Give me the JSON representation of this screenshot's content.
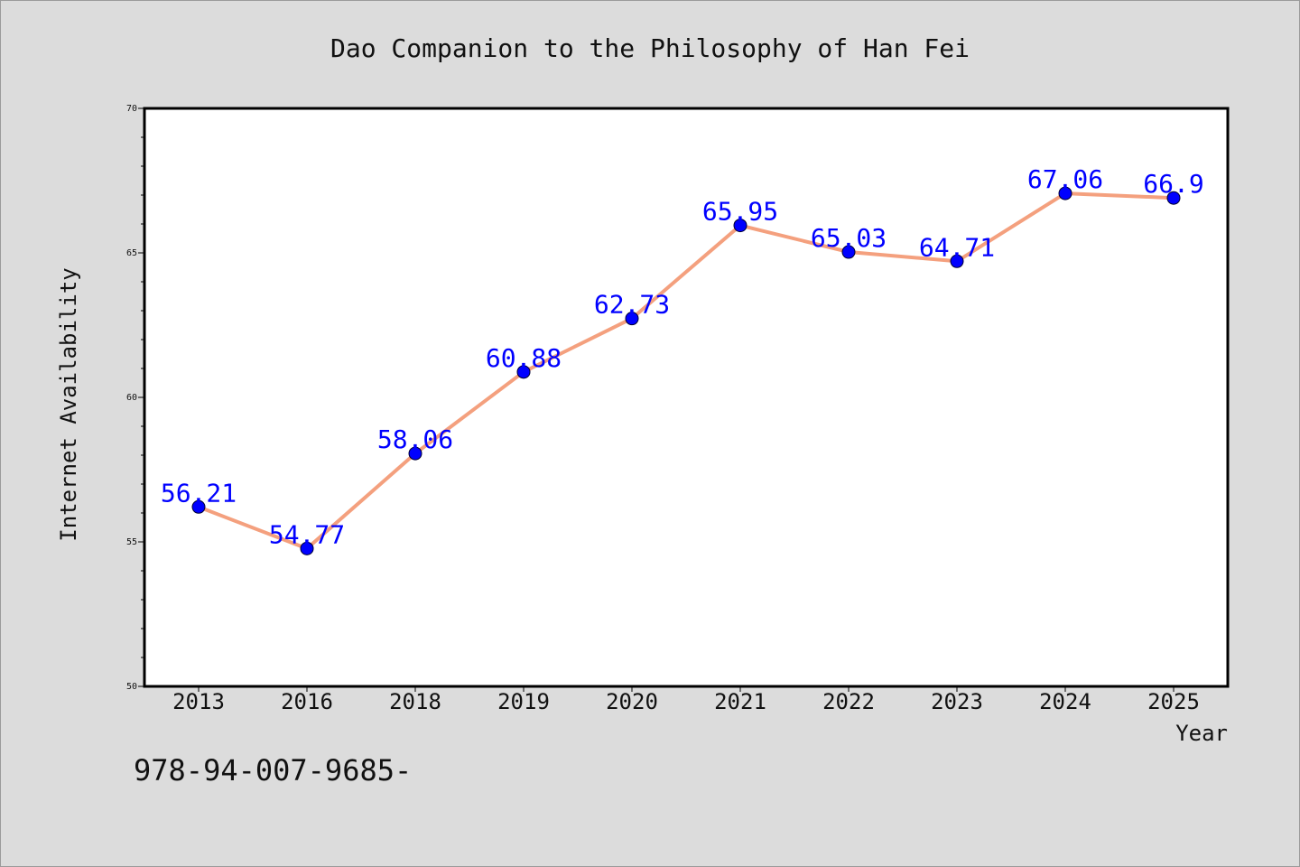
{
  "chart_data": {
    "type": "line",
    "title": "Dao Companion to the Philosophy of Han Fei",
    "xlabel": "Year",
    "ylabel": "Internet Availability",
    "categories": [
      "2013",
      "2016",
      "2018",
      "2019",
      "2020",
      "2021",
      "2022",
      "2023",
      "2024",
      "2025"
    ],
    "series": [
      {
        "values": [
          56.21,
          54.77,
          58.06,
          60.88,
          62.73,
          65.95,
          65.03,
          64.71,
          67.06,
          66.9
        ],
        "data_labels": [
          "56.21",
          "54.77",
          "58.06",
          "60.88",
          "62.73",
          "65.95",
          "65.03",
          "64.71",
          "67.06",
          "66.9"
        ]
      }
    ],
    "ylim": [
      50,
      70
    ],
    "yticks": [
      "50",
      "55",
      "60",
      "65",
      "70"
    ],
    "grid": false,
    "legend": "none",
    "colors": {
      "line": "#f4a07e",
      "marker": "#0000ff",
      "label": "#0000ff",
      "background": "#dcdcdc",
      "plot_background": "#ffffff"
    }
  },
  "footer": {
    "text": "978-94-007-9685-"
  }
}
